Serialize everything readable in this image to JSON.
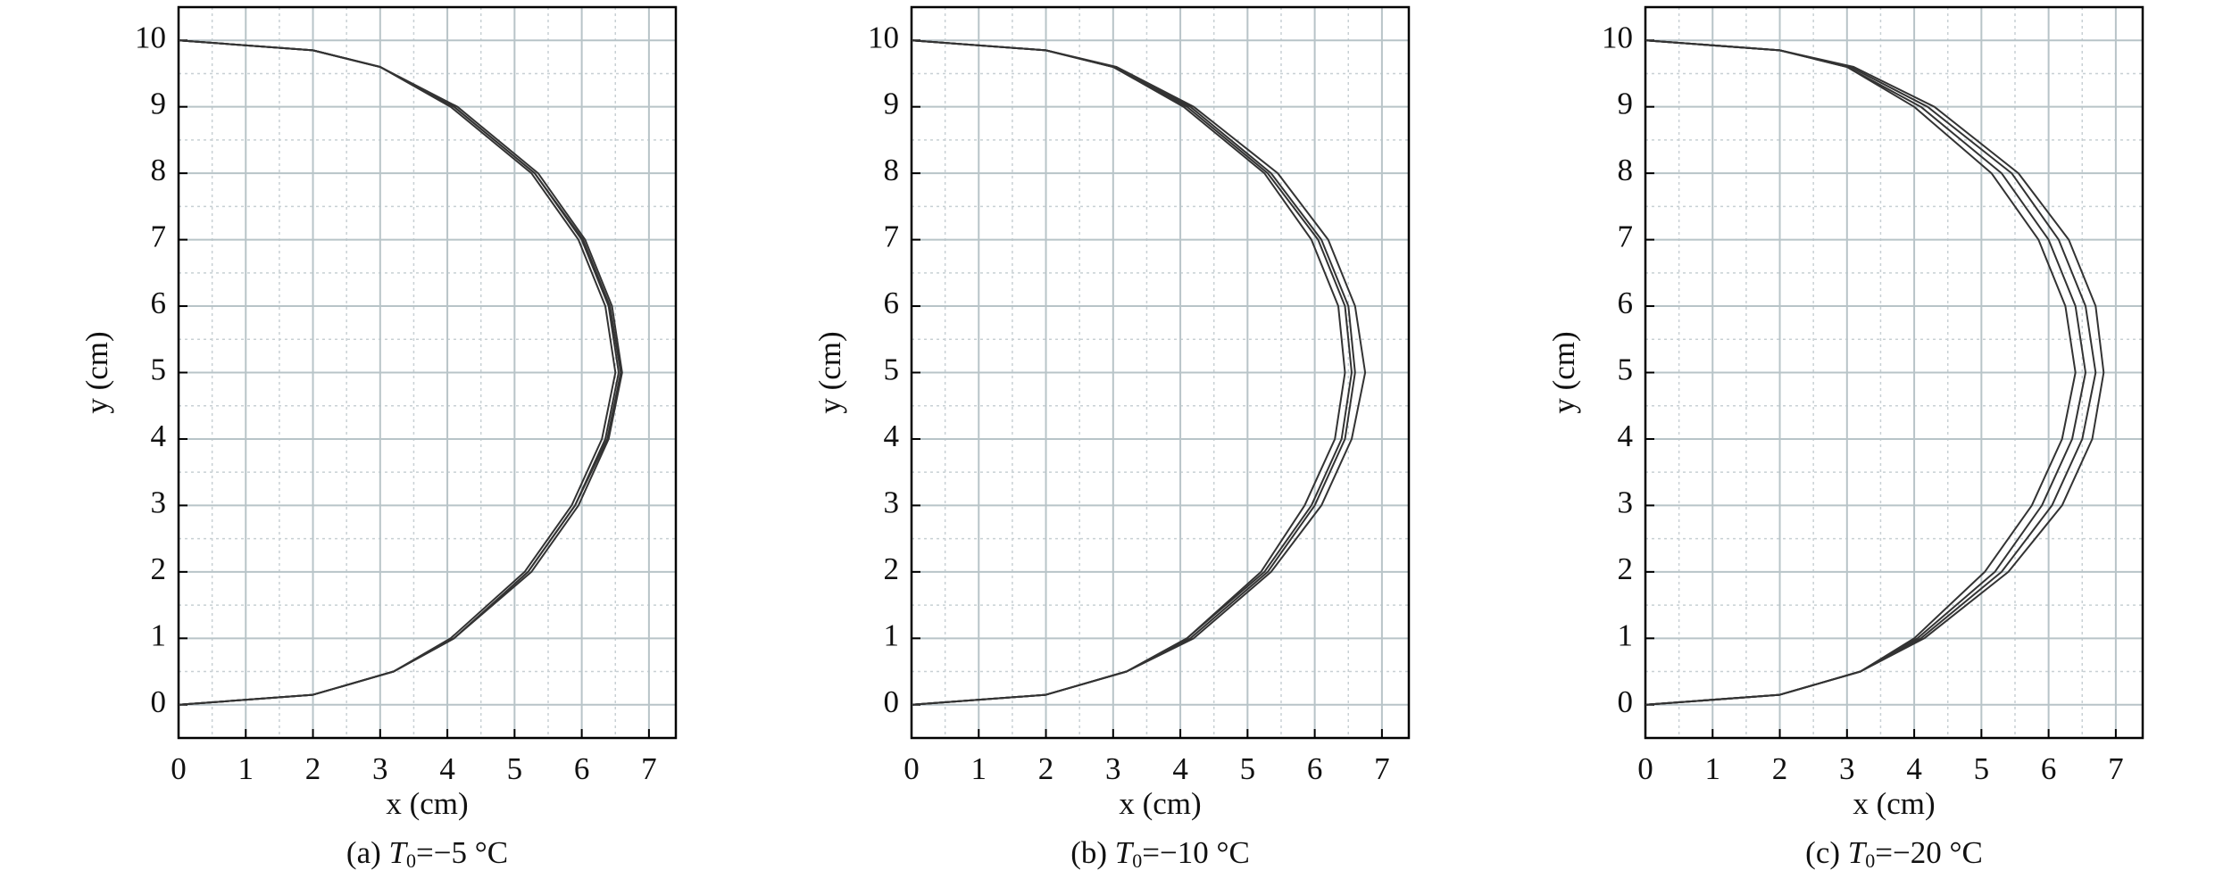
{
  "chart_data": [
    {
      "type": "line",
      "xlabel": "x (cm)",
      "ylabel": "y (cm)",
      "caption_prefix": "(a) ",
      "caption_var": "T",
      "caption_sub": "0",
      "caption_rest": "=−5 °C",
      "xlim": [
        0,
        7.4
      ],
      "ylim": [
        -0.5,
        10.5
      ],
      "xticks": [
        0,
        1,
        2,
        3,
        4,
        5,
        6,
        7
      ],
      "yticks": [
        0,
        1,
        2,
        3,
        4,
        5,
        6,
        7,
        8,
        9,
        10
      ],
      "minor_xticks": [
        0.5,
        1.5,
        2.5,
        3.5,
        4.5,
        5.5,
        6.5
      ],
      "minor_yticks": [
        0.5,
        1.5,
        2.5,
        3.5,
        4.5,
        5.5,
        6.5,
        7.5,
        8.5,
        9.5
      ],
      "grid": true,
      "series": [
        {
          "color": "#333333",
          "x": [
            0,
            2,
            3.2,
            4.1,
            5.2,
            5.9,
            6.35,
            6.55,
            6.4,
            6.0,
            5.3,
            4.1,
            3.0,
            2.0,
            0
          ],
          "values": [
            0,
            0.15,
            0.5,
            1,
            2,
            3,
            4,
            5,
            6,
            7,
            8,
            9,
            9.6,
            9.85,
            10
          ]
        },
        {
          "color": "#333333",
          "x": [
            0,
            2,
            3.2,
            4.1,
            5.25,
            5.95,
            6.4,
            6.6,
            6.45,
            6.05,
            5.35,
            4.15,
            3.0,
            2.0,
            0
          ],
          "values": [
            0,
            0.15,
            0.5,
            1,
            2,
            3,
            4,
            5,
            6,
            7,
            8,
            9,
            9.6,
            9.85,
            10
          ]
        },
        {
          "color": "#333333",
          "x": [
            0,
            2,
            3.2,
            4.05,
            5.15,
            5.85,
            6.3,
            6.5,
            6.35,
            5.95,
            5.25,
            4.05,
            3.0,
            2.0,
            0
          ],
          "values": [
            0,
            0.15,
            0.5,
            1,
            2,
            3,
            4,
            5,
            6,
            7,
            8,
            9,
            9.6,
            9.85,
            10
          ]
        },
        {
          "color": "#333333",
          "x": [
            0,
            2,
            3.2,
            4.1,
            5.2,
            5.9,
            6.38,
            6.58,
            6.42,
            6.02,
            5.3,
            4.1,
            3.0,
            2.0,
            0
          ],
          "values": [
            0,
            0.15,
            0.5,
            1,
            2,
            3,
            4,
            5,
            6,
            7,
            8,
            9,
            9.6,
            9.85,
            10
          ]
        }
      ]
    },
    {
      "type": "line",
      "xlabel": "x (cm)",
      "ylabel": "y (cm)",
      "caption_prefix": "(b) ",
      "caption_var": "T",
      "caption_sub": "0",
      "caption_rest": "=−10 °C",
      "xlim": [
        0,
        7.4
      ],
      "ylim": [
        -0.5,
        10.5
      ],
      "xticks": [
        0,
        1,
        2,
        3,
        4,
        5,
        6,
        7
      ],
      "yticks": [
        0,
        1,
        2,
        3,
        4,
        5,
        6,
        7,
        8,
        9,
        10
      ],
      "minor_xticks": [
        0.5,
        1.5,
        2.5,
        3.5,
        4.5,
        5.5,
        6.5
      ],
      "minor_yticks": [
        0.5,
        1.5,
        2.5,
        3.5,
        4.5,
        5.5,
        6.5,
        7.5,
        8.5,
        9.5
      ],
      "grid": true,
      "series": [
        {
          "color": "#333333",
          "x": [
            0,
            2,
            3.2,
            4.1,
            5.2,
            5.85,
            6.3,
            6.45,
            6.35,
            5.95,
            5.25,
            4.05,
            3.0,
            2.0,
            0
          ],
          "values": [
            0,
            0.15,
            0.5,
            1,
            2,
            3,
            4,
            5,
            6,
            7,
            8,
            9,
            9.6,
            9.85,
            10
          ]
        },
        {
          "color": "#333333",
          "x": [
            0,
            2,
            3.2,
            4.15,
            5.3,
            6.0,
            6.45,
            6.6,
            6.5,
            6.1,
            5.35,
            4.15,
            3.0,
            2.0,
            0
          ],
          "values": [
            0,
            0.15,
            0.5,
            1,
            2,
            3,
            4,
            5,
            6,
            7,
            8,
            9,
            9.6,
            9.85,
            10
          ]
        },
        {
          "color": "#333333",
          "x": [
            0,
            2,
            3.2,
            4.2,
            5.35,
            6.1,
            6.55,
            6.75,
            6.6,
            6.2,
            5.45,
            4.2,
            3.05,
            2.0,
            0
          ],
          "values": [
            0,
            0.15,
            0.5,
            1,
            2,
            3,
            4,
            5,
            6,
            7,
            8,
            9,
            9.6,
            9.85,
            10
          ]
        },
        {
          "color": "#333333",
          "x": [
            0,
            2,
            3.2,
            4.1,
            5.25,
            5.95,
            6.4,
            6.55,
            6.45,
            6.05,
            5.3,
            4.1,
            3.0,
            2.0,
            0
          ],
          "values": [
            0,
            0.15,
            0.5,
            1,
            2,
            3,
            4,
            5,
            6,
            7,
            8,
            9,
            9.6,
            9.85,
            10
          ]
        }
      ]
    },
    {
      "type": "line",
      "xlabel": "x (cm)",
      "ylabel": "y (cm)",
      "caption_prefix": "(c) ",
      "caption_var": "T",
      "caption_sub": "0",
      "caption_rest": "=−20 °C",
      "xlim": [
        0,
        7.4
      ],
      "ylim": [
        -0.5,
        10.5
      ],
      "xticks": [
        0,
        1,
        2,
        3,
        4,
        5,
        6,
        7
      ],
      "yticks": [
        0,
        1,
        2,
        3,
        4,
        5,
        6,
        7,
        8,
        9,
        10
      ],
      "minor_xticks": [
        0.5,
        1.5,
        2.5,
        3.5,
        4.5,
        5.5,
        6.5
      ],
      "minor_yticks": [
        0.5,
        1.5,
        2.5,
        3.5,
        4.5,
        5.5,
        6.5,
        7.5,
        8.5,
        9.5
      ],
      "grid": true,
      "series": [
        {
          "color": "#333333",
          "x": [
            0,
            2,
            3.2,
            4.0,
            5.05,
            5.75,
            6.2,
            6.4,
            6.25,
            5.85,
            5.15,
            4.0,
            3.0,
            2.0,
            0
          ],
          "values": [
            0,
            0.15,
            0.5,
            1,
            2,
            3,
            4,
            5,
            6,
            7,
            8,
            9,
            9.6,
            9.85,
            10
          ]
        },
        {
          "color": "#333333",
          "x": [
            0,
            2,
            3.2,
            4.05,
            5.2,
            5.9,
            6.35,
            6.55,
            6.4,
            6.0,
            5.3,
            4.1,
            3.0,
            2.0,
            0
          ],
          "values": [
            0,
            0.15,
            0.5,
            1,
            2,
            3,
            4,
            5,
            6,
            7,
            8,
            9,
            9.6,
            9.85,
            10
          ]
        },
        {
          "color": "#333333",
          "x": [
            0,
            2,
            3.2,
            4.1,
            5.3,
            6.05,
            6.5,
            6.7,
            6.55,
            6.15,
            5.45,
            4.2,
            3.05,
            2.0,
            0
          ],
          "values": [
            0,
            0.15,
            0.5,
            1,
            2,
            3,
            4,
            5,
            6,
            7,
            8,
            9,
            9.6,
            9.85,
            10
          ]
        },
        {
          "color": "#333333",
          "x": [
            0,
            2,
            3.2,
            4.15,
            5.4,
            6.2,
            6.65,
            6.82,
            6.7,
            6.3,
            5.55,
            4.3,
            3.1,
            2.0,
            0
          ],
          "values": [
            0,
            0.15,
            0.5,
            1,
            2,
            3,
            4,
            5,
            6,
            7,
            8,
            9,
            9.6,
            9.85,
            10
          ]
        }
      ]
    }
  ]
}
